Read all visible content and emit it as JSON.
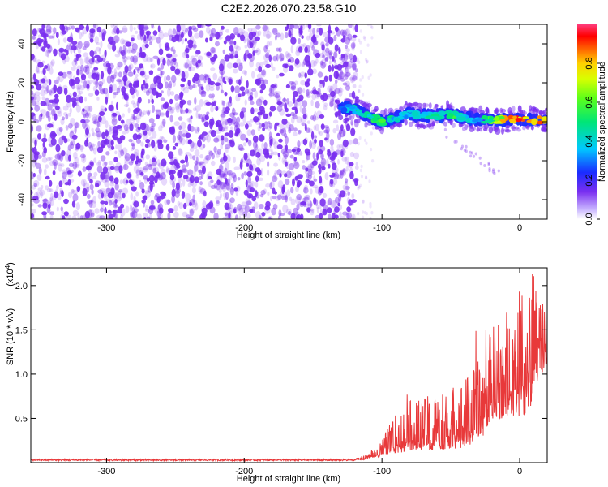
{
  "title": "C2E2.2026.070.23.58.G10",
  "chart_data": [
    {
      "type": "heatmap",
      "xlabel": "Height of straight line (km)",
      "ylabel": "Frequency (Hz)",
      "xlim": [
        -355,
        20
      ],
      "ylim": [
        -50,
        50
      ],
      "xticks": [
        "-300",
        "-200",
        "-100",
        "0"
      ],
      "xtick_values": [
        -300,
        -200,
        -100,
        0
      ],
      "yticks": [
        "-40",
        "-20",
        "0",
        "20",
        "40"
      ],
      "ytick_values": [
        -40,
        -20,
        0,
        20,
        40
      ],
      "noise_region_km": [
        -355,
        -118
      ],
      "signal_track": {
        "x": [
          -130,
          -120,
          -110,
          -100,
          -90,
          -80,
          -70,
          -60,
          -50,
          -40,
          -30,
          -20,
          -10,
          0,
          10,
          20
        ],
        "freq": [
          8,
          6,
          3,
          0,
          2,
          4,
          3,
          3,
          4,
          2,
          1,
          1,
          1,
          1,
          1,
          1
        ],
        "amplitude": [
          0.3,
          0.45,
          0.5,
          0.55,
          0.4,
          0.35,
          0.45,
          0.5,
          0.55,
          0.45,
          0.4,
          0.6,
          0.85,
          0.9,
          0.85,
          0.8
        ]
      },
      "colorbar": {
        "label": "Normalized spectral amplitude",
        "range": [
          0,
          1
        ],
        "ticks": [
          "0.0",
          "0.2",
          "0.4",
          "0.6",
          "0.8"
        ],
        "tick_values": [
          0,
          0.2,
          0.4,
          0.6,
          0.8
        ]
      }
    },
    {
      "type": "line",
      "xlabel": "Height of straight line (km)",
      "ylabel": "SNR (10 * v/v)",
      "multiplier": "(x10",
      "multiplier_exp": "4",
      "xlim": [
        -355,
        20
      ],
      "ylim": [
        0,
        2.2
      ],
      "xticks": [
        "-300",
        "-200",
        "-100",
        "0"
      ],
      "xtick_values": [
        -300,
        -200,
        -100,
        0
      ],
      "yticks": [
        "0.5",
        "1.0",
        "1.5",
        "2.0"
      ],
      "ytick_values": [
        0.5,
        1.0,
        1.5,
        2.0
      ],
      "series": [
        {
          "name": "SNR",
          "color": "#e8393a",
          "x": [
            -355,
            -300,
            -200,
            -150,
            -120,
            -110,
            -105,
            -100,
            -95,
            -90,
            -85,
            -80,
            -75,
            -70,
            -65,
            -60,
            -55,
            -50,
            -45,
            -40,
            -35,
            -30,
            -25,
            -20,
            -15,
            -10,
            -5,
            0,
            5,
            10,
            15,
            20
          ],
          "base": [
            0.03,
            0.03,
            0.03,
            0.03,
            0.03,
            0.05,
            0.08,
            0.12,
            0.17,
            0.2,
            0.22,
            0.25,
            0.27,
            0.27,
            0.28,
            0.29,
            0.3,
            0.31,
            0.33,
            0.36,
            0.4,
            0.45,
            0.55,
            0.7,
            0.75,
            0.8,
            0.82,
            0.85,
            0.9,
            1.05,
            1.2,
            1.25
          ],
          "spread": [
            0.01,
            0.01,
            0.01,
            0.01,
            0.02,
            0.04,
            0.08,
            0.15,
            0.25,
            0.35,
            0.4,
            0.45,
            0.45,
            0.45,
            0.5,
            0.5,
            0.5,
            0.55,
            0.6,
            0.6,
            0.65,
            0.7,
            0.75,
            0.85,
            0.9,
            0.95,
            1.0,
            1.1,
            1.2,
            1.15,
            0.8,
            0.5
          ]
        }
      ]
    }
  ],
  "colors": {
    "noise": "#7a2ff0",
    "line": "#e8393a"
  }
}
